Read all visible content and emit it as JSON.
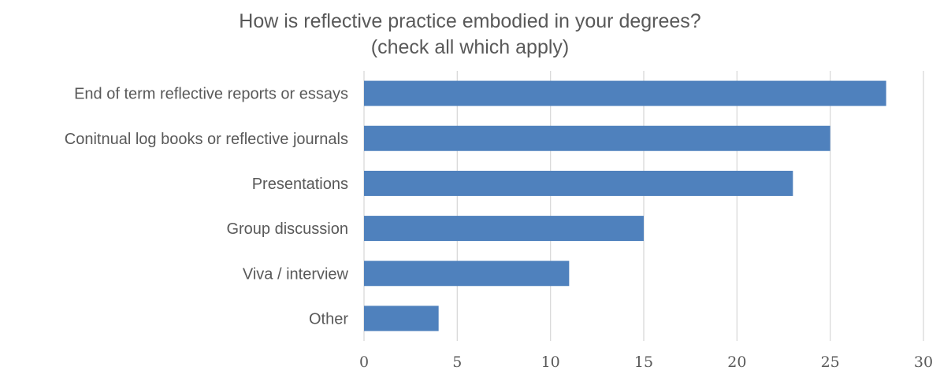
{
  "chart_data": {
    "type": "bar",
    "orientation": "horizontal",
    "title": [
      "How is reflective practice embodied in your degrees?",
      "(check all which apply)"
    ],
    "categories": [
      "End of term reflective reports or essays",
      "Conitnual log books or reflective journals",
      "Presentations",
      "Group discussion",
      "Viva / interview",
      "Other"
    ],
    "values": [
      28,
      25,
      23,
      15,
      11,
      4
    ],
    "xlim": [
      0,
      30
    ],
    "xticks": [
      0,
      5,
      10,
      15,
      20,
      25,
      30
    ],
    "grid": true,
    "bar_color": "#4F81BD",
    "grid_color": "#D9D9D9",
    "text_color": "#595959",
    "xlabel": "",
    "ylabel": ""
  }
}
